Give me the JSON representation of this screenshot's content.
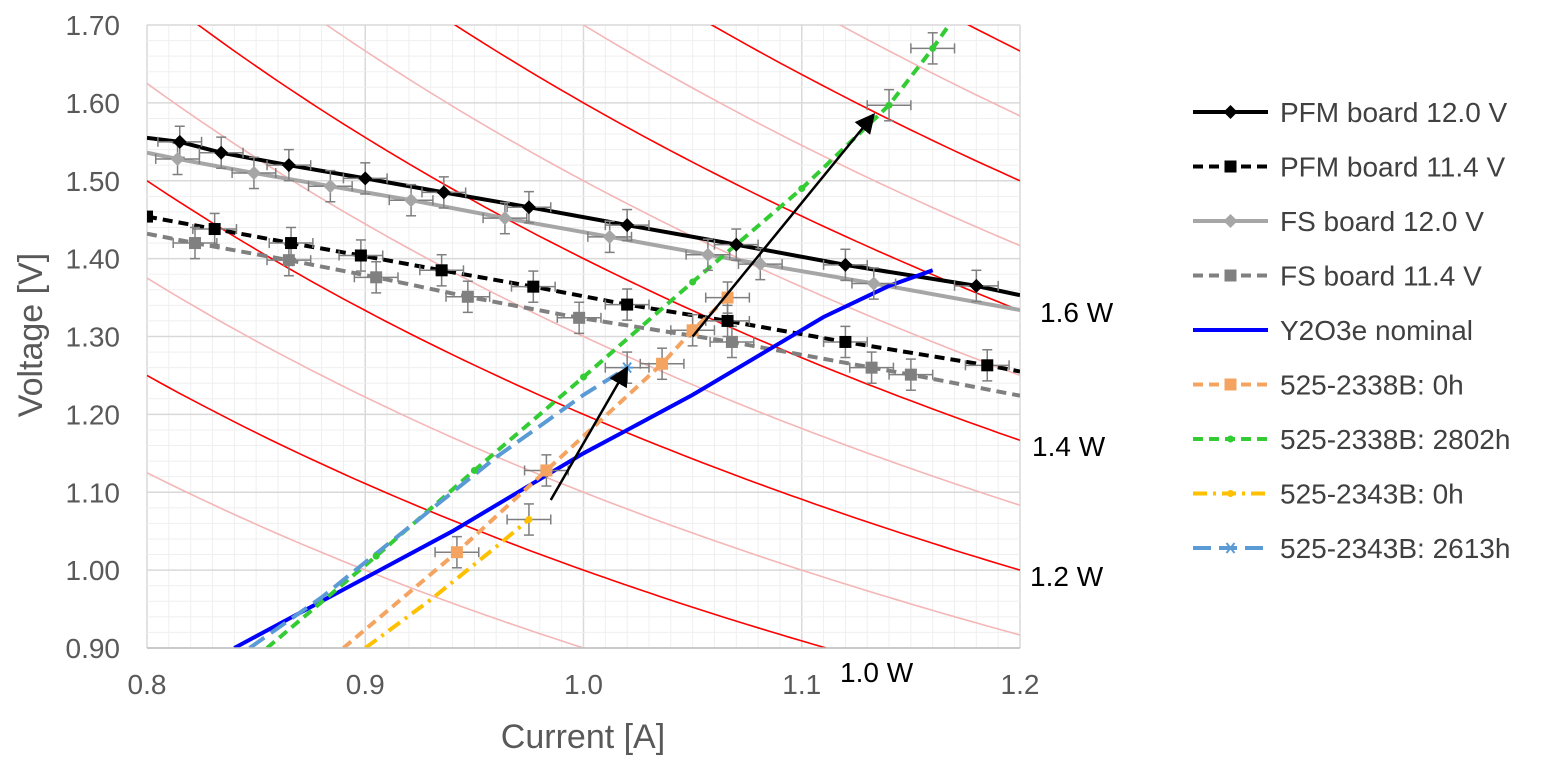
{
  "chart_data": {
    "type": "line",
    "xlabel": "Current [A]",
    "ylabel": "Voltage  [V]",
    "xlim": [
      0.8,
      1.2
    ],
    "ylim": [
      0.9,
      1.7
    ],
    "x_ticks": [
      "0.8",
      "0.9",
      "1.0",
      "1.1",
      "1.2"
    ],
    "y_ticks": [
      "0.90",
      "1.00",
      "1.10",
      "1.20",
      "1.30",
      "1.40",
      "1.50",
      "1.60",
      "1.70"
    ],
    "grid": true,
    "legend_position": "right",
    "iso_power_lines": {
      "major_color": "#ff0000",
      "minor_color": "#f4b6b6",
      "major_watts": [
        1.0,
        1.2,
        1.4,
        1.6,
        1.8,
        2.0
      ],
      "minor_watts": [
        0.9,
        1.1,
        1.3,
        1.5,
        1.7,
        1.9
      ],
      "labels": [
        {
          "watts": 1.6,
          "text": "1.6 W"
        },
        {
          "watts": 1.4,
          "text": "1.4 W"
        },
        {
          "watts": 1.2,
          "text": "1.2 W"
        },
        {
          "watts": 1.0,
          "text": "1.0 W"
        }
      ]
    },
    "series": [
      {
        "name": "PFM board 12.0 V",
        "color": "#000000",
        "dash": "solid",
        "marker": "diamond",
        "x": [
          0.8,
          0.815,
          0.834,
          0.865,
          0.9,
          0.936,
          0.975,
          1.02,
          1.07,
          1.12,
          1.18,
          1.2
        ],
        "y": [
          1.555,
          1.55,
          1.536,
          1.52,
          1.503,
          1.485,
          1.466,
          1.443,
          1.418,
          1.392,
          1.365,
          1.353
        ],
        "marker_from": 1,
        "marker_to": 10
      },
      {
        "name": "PFM board 11.4 V",
        "color": "#000000",
        "dash": "dashed",
        "marker": "square",
        "x": [
          0.8,
          0.831,
          0.866,
          0.898,
          0.935,
          0.977,
          1.02,
          1.066,
          1.12,
          1.185,
          1.2
        ],
        "y": [
          1.454,
          1.438,
          1.42,
          1.404,
          1.385,
          1.364,
          1.341,
          1.32,
          1.293,
          1.263,
          1.255
        ],
        "marker_from": 0,
        "marker_to": 9
      },
      {
        "name": "FS board 12.0 V",
        "color": "#a6a6a6",
        "dash": "solid",
        "marker": "diamond",
        "x": [
          0.8,
          0.814,
          0.849,
          0.884,
          0.921,
          0.964,
          1.012,
          1.057,
          1.081,
          1.133,
          1.2
        ],
        "y": [
          1.536,
          1.528,
          1.51,
          1.493,
          1.475,
          1.452,
          1.428,
          1.405,
          1.393,
          1.368,
          1.334
        ],
        "marker_from": 1,
        "marker_to": 9
      },
      {
        "name": "FS board 11.4 V",
        "color": "#808080",
        "dash": "dashed",
        "marker": "square",
        "x": [
          0.8,
          0.822,
          0.865,
          0.905,
          0.947,
          0.998,
          1.068,
          1.132,
          1.15,
          1.2
        ],
        "y": [
          1.432,
          1.42,
          1.398,
          1.376,
          1.351,
          1.324,
          1.293,
          1.26,
          1.251,
          1.224
        ],
        "marker_from": 1,
        "marker_to": 8
      },
      {
        "name": "Y2O3e nominal",
        "color": "#0000ff",
        "dash": "solid",
        "marker": "none",
        "x": [
          0.84,
          0.86,
          0.9,
          0.94,
          0.97,
          1.0,
          1.02,
          1.05,
          1.08,
          1.11,
          1.14,
          1.16
        ],
        "y": [
          0.9,
          0.93,
          0.99,
          1.05,
          1.1,
          1.15,
          1.18,
          1.225,
          1.275,
          1.325,
          1.365,
          1.385
        ],
        "marker_from": 0,
        "marker_to": -1
      },
      {
        "name": "525-2338B: 0h",
        "color": "#f4a460",
        "dash": "dashed",
        "marker": "square",
        "x": [
          0.89,
          0.942,
          0.983,
          1.036,
          1.05,
          1.066
        ],
        "y": [
          0.9,
          1.023,
          1.128,
          1.265,
          1.308,
          1.35
        ],
        "marker_from": 1,
        "marker_to": 5
      },
      {
        "name": "525-2338B: 2802h",
        "color": "#33cc33",
        "dash": "dashed",
        "marker": "dot",
        "x": [
          0.855,
          0.905,
          0.95,
          1.0,
          1.05,
          1.1,
          1.14,
          1.16,
          1.17
        ],
        "y": [
          0.9,
          1.018,
          1.128,
          1.248,
          1.37,
          1.49,
          1.597,
          1.67,
          1.71
        ],
        "marker_from": 1,
        "marker_to": 7
      },
      {
        "name": "525-2343B: 0h",
        "color": "#ffc000",
        "dash": "dashdot",
        "marker": "dot",
        "x": [
          0.9,
          0.93,
          0.96,
          0.975
        ],
        "y": [
          0.9,
          0.962,
          1.03,
          1.065
        ],
        "marker_from": 3,
        "marker_to": 3
      },
      {
        "name": "525-2343B: 2613h",
        "color": "#5b9bd5",
        "dash": "longdash",
        "marker": "star",
        "x": [
          0.847,
          0.88,
          0.92,
          0.96,
          1.0,
          1.02
        ],
        "y": [
          0.9,
          0.965,
          1.055,
          1.145,
          1.225,
          1.26
        ],
        "marker_from": 5,
        "marker_to": 5
      }
    ],
    "error_bars": [
      {
        "x": 0.815,
        "y": 1.55
      },
      {
        "x": 0.834,
        "y": 1.536
      },
      {
        "x": 0.865,
        "y": 1.52
      },
      {
        "x": 0.9,
        "y": 1.503
      },
      {
        "x": 0.936,
        "y": 1.485
      },
      {
        "x": 0.975,
        "y": 1.466
      },
      {
        "x": 1.02,
        "y": 1.443
      },
      {
        "x": 1.07,
        "y": 1.418
      },
      {
        "x": 1.12,
        "y": 1.392
      },
      {
        "x": 1.18,
        "y": 1.365
      },
      {
        "x": 0.831,
        "y": 1.438
      },
      {
        "x": 0.866,
        "y": 1.42
      },
      {
        "x": 0.898,
        "y": 1.404
      },
      {
        "x": 0.935,
        "y": 1.385
      },
      {
        "x": 0.977,
        "y": 1.364
      },
      {
        "x": 1.02,
        "y": 1.341
      },
      {
        "x": 1.066,
        "y": 1.32
      },
      {
        "x": 1.12,
        "y": 1.293
      },
      {
        "x": 1.185,
        "y": 1.263
      },
      {
        "x": 0.814,
        "y": 1.528
      },
      {
        "x": 0.849,
        "y": 1.51
      },
      {
        "x": 0.884,
        "y": 1.493
      },
      {
        "x": 0.921,
        "y": 1.475
      },
      {
        "x": 0.964,
        "y": 1.452
      },
      {
        "x": 1.012,
        "y": 1.428
      },
      {
        "x": 1.057,
        "y": 1.405
      },
      {
        "x": 1.081,
        "y": 1.393
      },
      {
        "x": 1.133,
        "y": 1.368
      },
      {
        "x": 0.822,
        "y": 1.42
      },
      {
        "x": 0.865,
        "y": 1.398
      },
      {
        "x": 0.905,
        "y": 1.376
      },
      {
        "x": 0.947,
        "y": 1.351
      },
      {
        "x": 0.998,
        "y": 1.324
      },
      {
        "x": 1.068,
        "y": 1.293
      },
      {
        "x": 1.132,
        "y": 1.26
      },
      {
        "x": 1.15,
        "y": 1.251
      },
      {
        "x": 0.942,
        "y": 1.023
      },
      {
        "x": 0.983,
        "y": 1.128
      },
      {
        "x": 1.036,
        "y": 1.265
      },
      {
        "x": 1.05,
        "y": 1.308
      },
      {
        "x": 1.066,
        "y": 1.35
      },
      {
        "x": 1.14,
        "y": 1.597
      },
      {
        "x": 1.16,
        "y": 1.67
      },
      {
        "x": 0.975,
        "y": 1.065
      },
      {
        "x": 1.02,
        "y": 1.26
      }
    ],
    "error_dx": 0.01,
    "error_dy": 0.04,
    "annotations": [
      {
        "type": "arrow",
        "x1": 0.985,
        "y1": 1.09,
        "x2": 1.02,
        "y2": 1.26
      },
      {
        "type": "arrow",
        "x1": 1.05,
        "y1": 1.3,
        "x2": 1.133,
        "y2": 1.585
      }
    ]
  }
}
